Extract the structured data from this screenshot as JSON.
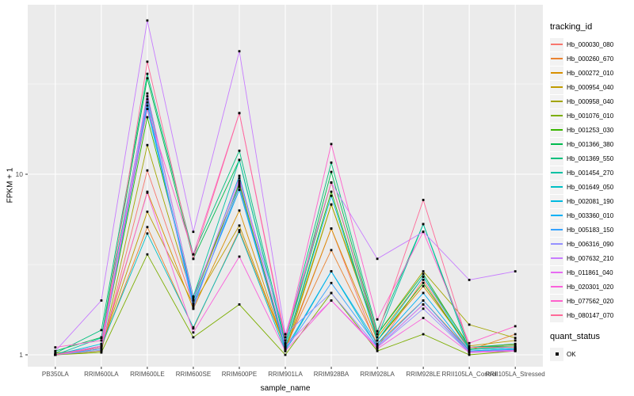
{
  "legend": {
    "tracking_title": "tracking_id",
    "quant_title": "quant_status",
    "quant_value": "OK"
  },
  "chart_data": {
    "type": "line",
    "title": "",
    "xlabel": "sample_name",
    "ylabel": "FPKM + 1",
    "y_scale": "log10",
    "ylim": [
      1,
      87
    ],
    "y_major_ticks": [
      1,
      10
    ],
    "y_minor_gridlines": [
      3.1623,
      31.623
    ],
    "grid": true,
    "legend_position": "right",
    "panel_background": "#EBEBEB",
    "grid_color": "#FFFFFF",
    "point_color": "#000000",
    "tick_label_color": "#4D4D4D",
    "categories": [
      "PB350LA",
      "RRIM600LA",
      "RRIM600LE",
      "RRIM600SE",
      "RRIM600PE",
      "RRIM901LA",
      "RRIM928BA",
      "RRIM928LA",
      "RRIM928LE",
      "RRII105LA_Control",
      "RRII105LA_Stressed"
    ],
    "series": [
      {
        "name": "Hb_000030_080",
        "color": "#F8766D",
        "values": [
          1.0,
          1.05,
          10.5,
          1.9,
          8.5,
          1.05,
          5.0,
          1.1,
          2.6,
          1.05,
          1.08
        ]
      },
      {
        "name": "Hb_000260_670",
        "color": "#EA8331",
        "values": [
          1.0,
          1.1,
          5.1,
          1.4,
          4.9,
          1.1,
          3.8,
          1.15,
          2.0,
          1.06,
          1.3
        ]
      },
      {
        "name": "Hb_000272_010",
        "color": "#D89000",
        "values": [
          1.0,
          1.08,
          8.0,
          1.8,
          6.3,
          1.08,
          5.0,
          1.2,
          2.4,
          1.1,
          1.14
        ]
      },
      {
        "name": "Hb_000954_040",
        "color": "#C09B00",
        "values": [
          1.02,
          1.1,
          6.2,
          1.9,
          5.2,
          1.1,
          6.8,
          1.25,
          2.7,
          1.12,
          1.2
        ]
      },
      {
        "name": "Hb_000958_040",
        "color": "#A3A500",
        "values": [
          1.0,
          1.05,
          14.5,
          2.0,
          9.0,
          1.05,
          6.8,
          1.3,
          2.9,
          1.47,
          1.24
        ]
      },
      {
        "name": "Hb_001076_010",
        "color": "#7CAE00",
        "values": [
          1.0,
          1.03,
          3.6,
          1.25,
          1.9,
          1.0,
          2.2,
          1.05,
          1.3,
          1.0,
          1.05
        ]
      },
      {
        "name": "Hb_001253_030",
        "color": "#39B600",
        "values": [
          1.0,
          1.1,
          20.7,
          2.1,
          8.8,
          1.1,
          8.0,
          1.2,
          2.5,
          1.08,
          1.1
        ]
      },
      {
        "name": "Hb_001366_380",
        "color": "#00BB4E",
        "values": [
          1.05,
          1.25,
          34,
          3.4,
          12,
          1.15,
          10.3,
          1.3,
          2.8,
          1.1,
          1.12
        ]
      },
      {
        "name": "Hb_001369_550",
        "color": "#00BF7D",
        "values": [
          1.02,
          1.37,
          36,
          3.6,
          13.5,
          1.2,
          11.6,
          1.35,
          5.3,
          1.1,
          1.15
        ]
      },
      {
        "name": "Hb_001454_270",
        "color": "#00C1A3",
        "values": [
          1.0,
          1.24,
          27,
          2.1,
          12,
          1.16,
          9.0,
          1.25,
          5.3,
          1.05,
          1.08
        ]
      },
      {
        "name": "Hb_001649_050",
        "color": "#00BFC4",
        "values": [
          1.0,
          1.12,
          4.7,
          1.42,
          4.8,
          1.05,
          2.9,
          1.1,
          1.9,
          1.03,
          1.06
        ]
      },
      {
        "name": "Hb_002081_190",
        "color": "#00BAE0",
        "values": [
          1.0,
          1.15,
          24,
          2.0,
          9.8,
          1.1,
          7.6,
          1.2,
          2.7,
          1.07,
          1.1
        ]
      },
      {
        "name": "Hb_003360_010",
        "color": "#00B0F6",
        "values": [
          1.0,
          1.1,
          23,
          1.93,
          8.2,
          1.08,
          2.9,
          1.15,
          2.2,
          1.05,
          1.08
        ]
      },
      {
        "name": "Hb_005183_150",
        "color": "#35A2FF",
        "values": [
          1.0,
          1.08,
          25,
          1.85,
          8.6,
          1.06,
          2.5,
          1.12,
          2.0,
          1.04,
          1.07
        ]
      },
      {
        "name": "Hb_006316_090",
        "color": "#9590FF",
        "values": [
          1.0,
          1.06,
          26,
          1.8,
          9.2,
          1.3,
          2.2,
          1.1,
          1.8,
          1.03,
          1.05
        ]
      },
      {
        "name": "Hb_007632_210",
        "color": "#C77CFF",
        "values": [
          1.05,
          2.0,
          71,
          4.8,
          48,
          1.3,
          9.0,
          3.4,
          4.8,
          2.6,
          2.9
        ]
      },
      {
        "name": "Hb_011861_040",
        "color": "#E76BF3",
        "values": [
          1.0,
          1.1,
          28,
          2.05,
          9.5,
          1.12,
          2.0,
          1.1,
          1.9,
          1.04,
          1.06
        ]
      },
      {
        "name": "Hb_020301_020",
        "color": "#FA62DB",
        "values": [
          1.0,
          1.12,
          7.9,
          1.33,
          3.5,
          1.05,
          2.0,
          1.08,
          1.6,
          1.03,
          1.05
        ]
      },
      {
        "name": "Hb_077562_020",
        "color": "#FF61CC",
        "values": [
          1.1,
          1.2,
          23,
          3.6,
          21.8,
          1.2,
          14.7,
          1.57,
          4.8,
          1.16,
          1.44
        ]
      },
      {
        "name": "Hb_080147_070",
        "color": "#FF6A98",
        "values": [
          1.0,
          1.1,
          42,
          3.4,
          21.8,
          1.25,
          9.0,
          1.3,
          7.2,
          1.1,
          1.1
        ]
      }
    ],
    "quant_status_values": [
      "OK"
    ]
  }
}
